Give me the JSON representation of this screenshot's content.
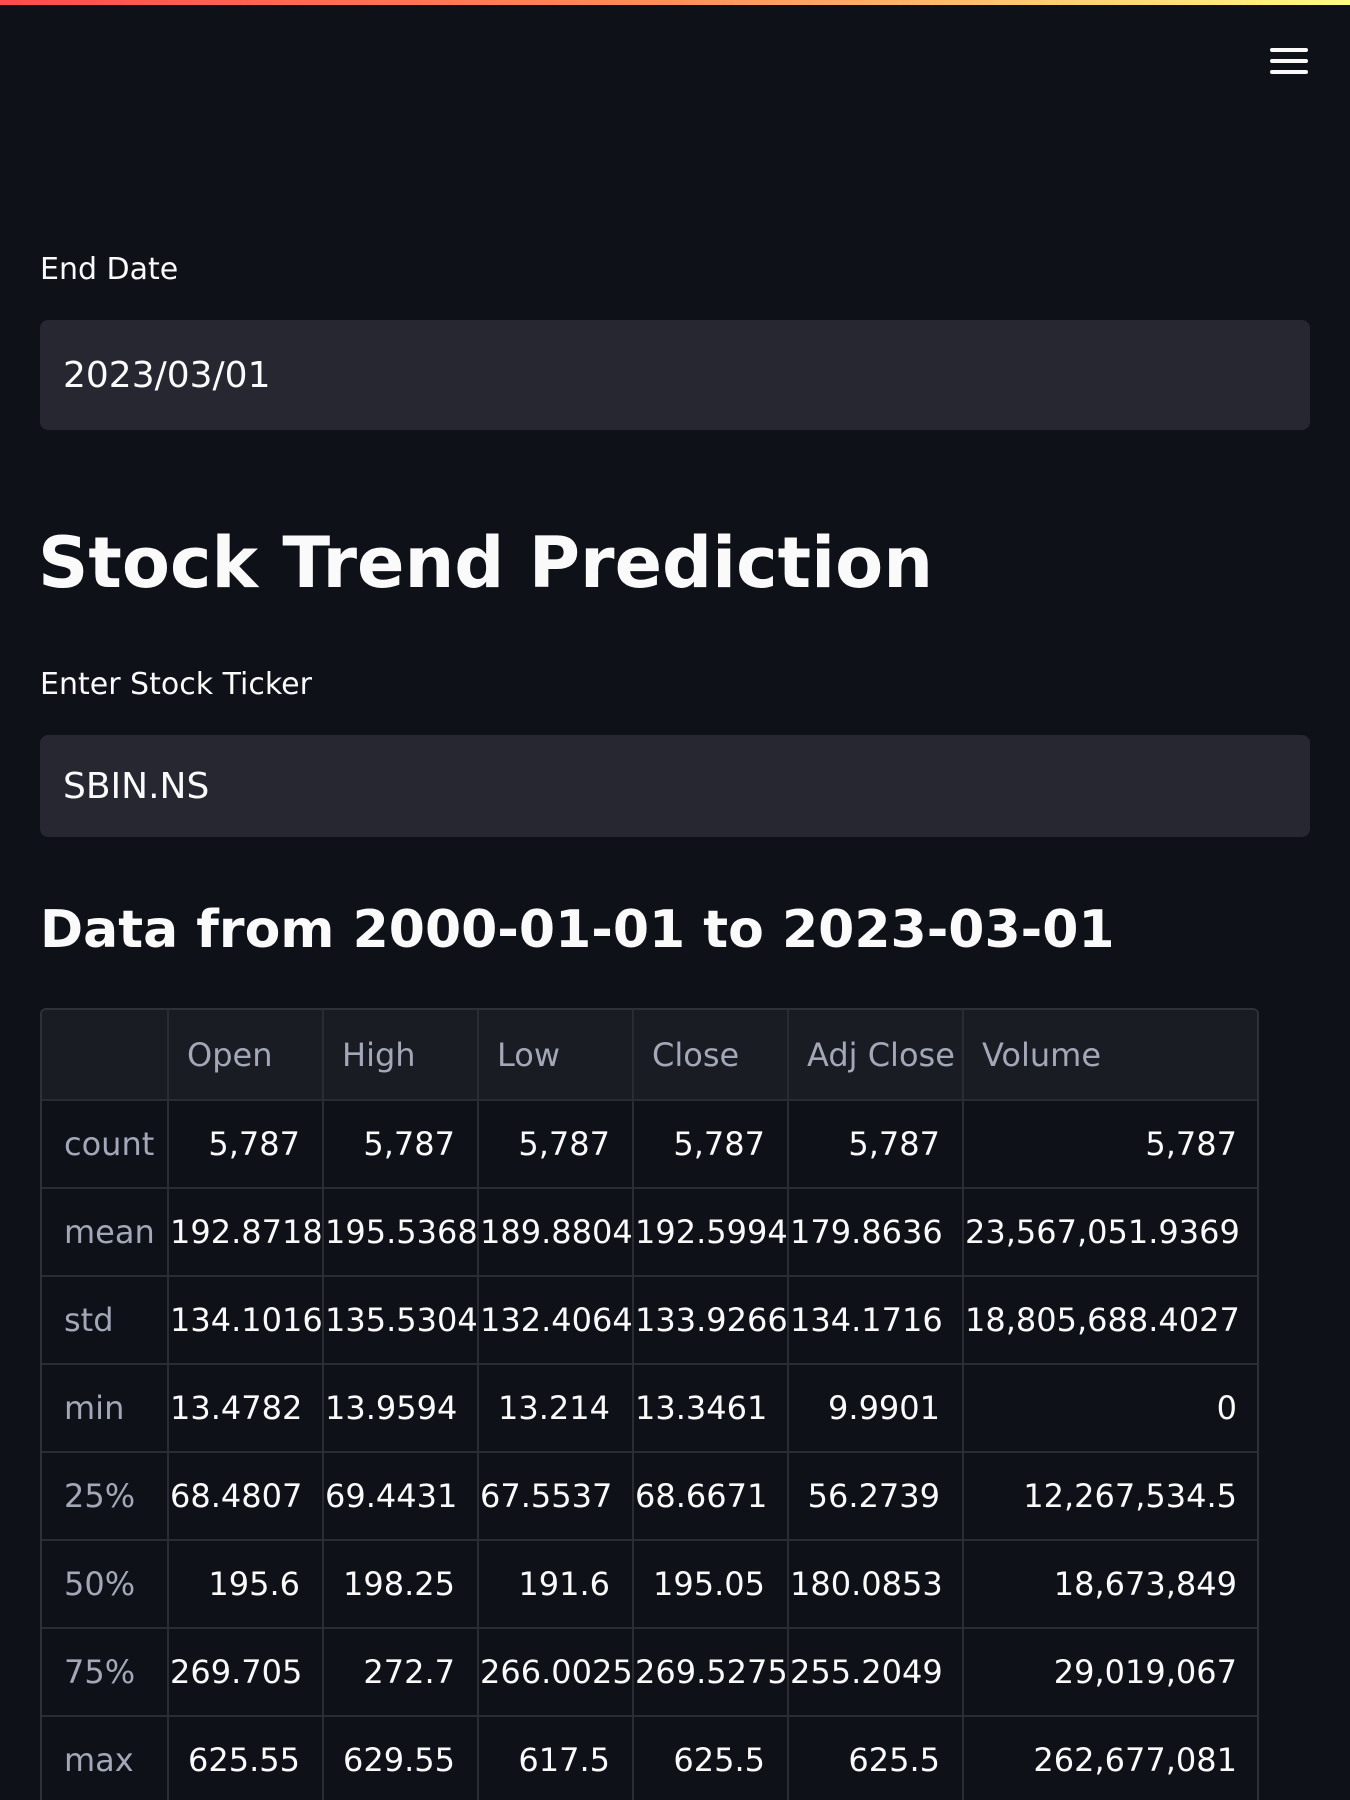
{
  "header": {
    "menu_icon": "hamburger-menu-icon"
  },
  "end_date": {
    "label": "End Date",
    "value": "2023/03/01"
  },
  "title": "Stock Trend Prediction",
  "ticker": {
    "label": "Enter Stock Ticker",
    "value": "SBIN.NS"
  },
  "data_heading": "Data from 2000-01-01 to 2023-03-01",
  "table": {
    "columns": [
      "",
      "Open",
      "High",
      "Low",
      "Close",
      "Adj Close",
      "Volume"
    ],
    "rows": [
      {
        "stat": "count",
        "values": [
          "5,787",
          "5,787",
          "5,787",
          "5,787",
          "5,787",
          "5,787"
        ]
      },
      {
        "stat": "mean",
        "values": [
          "192.8718",
          "195.5368",
          "189.8804",
          "192.5994",
          "179.8636",
          "23,567,051.9369"
        ]
      },
      {
        "stat": "std",
        "values": [
          "134.1016",
          "135.5304",
          "132.4064",
          "133.9266",
          "134.1716",
          "18,805,688.4027"
        ]
      },
      {
        "stat": "min",
        "values": [
          "13.4782",
          "13.9594",
          "13.214",
          "13.3461",
          "9.9901",
          "0"
        ]
      },
      {
        "stat": "25%",
        "values": [
          "68.4807",
          "69.4431",
          "67.5537",
          "68.6671",
          "56.2739",
          "12,267,534.5"
        ]
      },
      {
        "stat": "50%",
        "values": [
          "195.6",
          "198.25",
          "191.6",
          "195.05",
          "180.0853",
          "18,673,849"
        ]
      },
      {
        "stat": "75%",
        "values": [
          "269.705",
          "272.7",
          "266.0025",
          "269.5275",
          "255.2049",
          "29,019,067"
        ]
      },
      {
        "stat": "max",
        "values": [
          "625.55",
          "629.55",
          "617.5",
          "625.5",
          "625.5",
          "262,677,081"
        ]
      }
    ]
  },
  "colors": {
    "background": "#0e1117",
    "input_background": "#262730",
    "text": "#fafafa",
    "muted_text": "#a3a8b8",
    "accent_gradient_start": "#ff4b4b",
    "accent_gradient_end": "#fffd80"
  }
}
